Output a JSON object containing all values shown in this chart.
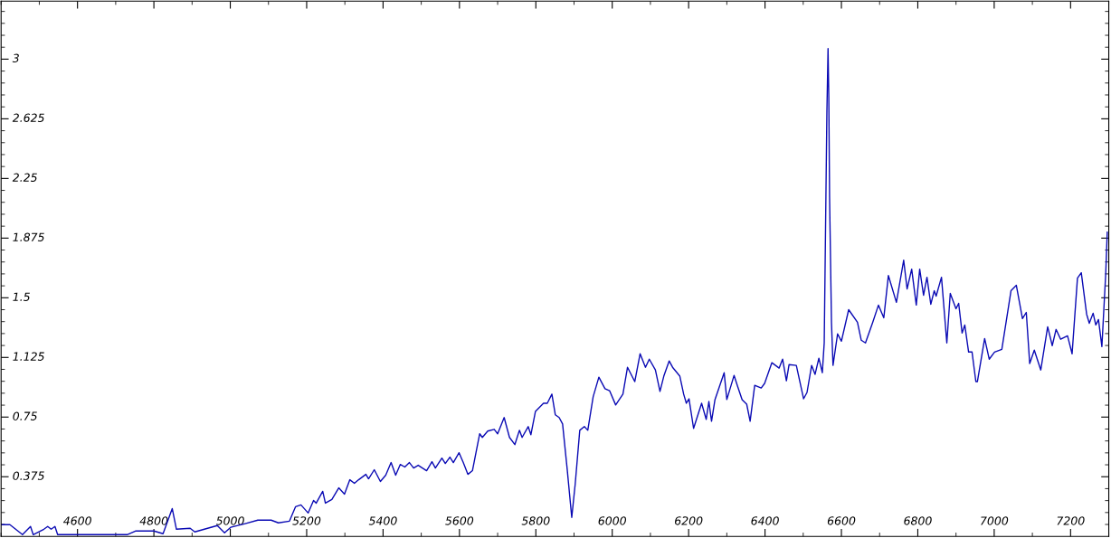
{
  "chart_data": {
    "type": "line",
    "xlim": [
      4400,
      7300
    ],
    "ylim": [
      0,
      3.365
    ],
    "xticks": [
      {
        "value": 4400,
        "label": null
      },
      {
        "value": 4500,
        "label": null
      },
      4600,
      {
        "value": 4700,
        "label": null
      },
      4800,
      {
        "value": 4900,
        "label": null
      },
      5000,
      {
        "value": 5100,
        "label": null
      },
      5200,
      {
        "value": 5300,
        "label": null
      },
      5400,
      {
        "value": 5500,
        "label": null
      },
      5600,
      {
        "value": 5700,
        "label": null
      },
      5800,
      {
        "value": 5900,
        "label": null
      },
      6000,
      {
        "value": 6100,
        "label": null
      },
      6200,
      {
        "value": 6300,
        "label": null
      },
      6400,
      {
        "value": 6500,
        "label": null
      },
      6600,
      {
        "value": 6700,
        "label": null
      },
      6800,
      {
        "value": 6900,
        "label": null
      },
      7000,
      {
        "value": 7100,
        "label": null
      },
      7200,
      {
        "value": 7300,
        "label": null
      }
    ],
    "yticks": [
      {
        "value": 0.075,
        "label": null
      },
      {
        "value": 0.15,
        "label": null
      },
      {
        "value": 0.225,
        "label": null
      },
      {
        "value": 0.3,
        "label": null
      },
      0.375,
      {
        "value": 0.45,
        "label": null
      },
      {
        "value": 0.525,
        "label": null
      },
      {
        "value": 0.6,
        "label": null
      },
      {
        "value": 0.675,
        "label": null
      },
      0.75,
      {
        "value": 0.825,
        "label": null
      },
      {
        "value": 0.9,
        "label": null
      },
      {
        "value": 0.975,
        "label": null
      },
      {
        "value": 1.05,
        "label": null
      },
      1.125,
      {
        "value": 1.2,
        "label": null
      },
      {
        "value": 1.275,
        "label": null
      },
      {
        "value": 1.35,
        "label": null
      },
      {
        "value": 1.425,
        "label": null
      },
      1.5,
      {
        "value": 1.575,
        "label": null
      },
      {
        "value": 1.65,
        "label": null
      },
      {
        "value": 1.725,
        "label": null
      },
      {
        "value": 1.8,
        "label": null
      },
      1.875,
      {
        "value": 1.95,
        "label": null
      },
      {
        "value": 2.025,
        "label": null
      },
      {
        "value": 2.1,
        "label": null
      },
      {
        "value": 2.175,
        "label": null
      },
      2.25,
      {
        "value": 2.325,
        "label": null
      },
      {
        "value": 2.4,
        "label": null
      },
      {
        "value": 2.475,
        "label": null
      },
      {
        "value": 2.55,
        "label": null
      },
      2.625,
      {
        "value": 2.7,
        "label": null
      },
      {
        "value": 2.775,
        "label": null
      },
      {
        "value": 2.85,
        "label": null
      },
      {
        "value": 2.925,
        "label": null
      },
      3,
      {
        "value": 3.075,
        "label": null
      },
      {
        "value": 3.15,
        "label": null
      },
      {
        "value": 3.225,
        "label": null
      },
      {
        "value": 3.3,
        "label": null
      }
    ],
    "grid": false,
    "legend": false,
    "marker": "none",
    "line_style": "solid",
    "series": [
      {
        "color": "#0a0ab4",
        "x": [
          4400,
          4423,
          4456,
          4477,
          4484,
          4512,
          4522,
          4531,
          4541,
          4548,
          4730,
          4753,
          4800,
          4824,
          4848,
          4859,
          4895,
          4907,
          4966,
          4985,
          5001,
          5037,
          5072,
          5107,
          5126,
          5155,
          5171,
          5185,
          5204,
          5218,
          5225,
          5242,
          5249,
          5266,
          5284,
          5299,
          5313,
          5325,
          5336,
          5355,
          5362,
          5377,
          5393,
          5407,
          5421,
          5433,
          5445,
          5457,
          5469,
          5480,
          5492,
          5514,
          5528,
          5537,
          5554,
          5563,
          5575,
          5584,
          5599,
          5610,
          5622,
          5634,
          5653,
          5660,
          5674,
          5691,
          5700,
          5717,
          5731,
          5745,
          5757,
          5764,
          5780,
          5787,
          5799,
          5820,
          5830,
          5842,
          5851,
          5861,
          5870,
          5882,
          5894,
          5903,
          5915,
          5927,
          5936,
          5950,
          5965,
          5981,
          5993,
          6009,
          6028,
          6040,
          6059,
          6073,
          6087,
          6097,
          6113,
          6125,
          6135,
          6149,
          6158,
          6177,
          6187,
          6194,
          6201,
          6213,
          6234,
          6246,
          6253,
          6260,
          6269,
          6293,
          6300,
          6319,
          6328,
          6340,
          6352,
          6361,
          6373,
          6390,
          6399,
          6418,
          6437,
          6446,
          6456,
          6463,
          6482,
          6501,
          6510,
          6522,
          6531,
          6541,
          6550,
          6555,
          6557,
          6562,
          6564,
          6565,
          6567,
          6569,
          6574,
          6578,
          6590,
          6600,
          6619,
          6642,
          6652,
          6663,
          6682,
          6697,
          6711,
          6723,
          6744,
          6763,
          6772,
          6784,
          6796,
          6805,
          6815,
          6824,
          6834,
          6843,
          6848,
          6862,
          6876,
          6885,
          6900,
          6907,
          6916,
          6923,
          6933,
          6942,
          6952,
          6956,
          6975,
          6987,
          7001,
          7020,
          7044,
          7058,
          7074,
          7084,
          7093,
          7105,
          7122,
          7140,
          7152,
          7162,
          7174,
          7192,
          7204,
          7218,
          7228,
          7242,
          7249,
          7259,
          7266,
          7273,
          7282,
          7292,
          7296
        ],
        "values": [
          0.074,
          0.074,
          0.011,
          0.062,
          0.011,
          0.045,
          0.062,
          0.045,
          0.062,
          0.011,
          0.011,
          0.034,
          0.034,
          0.017,
          0.175,
          0.045,
          0.051,
          0.028,
          0.068,
          0.023,
          0.057,
          0.079,
          0.102,
          0.102,
          0.085,
          0.096,
          0.187,
          0.198,
          0.147,
          0.226,
          0.209,
          0.283,
          0.209,
          0.232,
          0.305,
          0.266,
          0.356,
          0.334,
          0.356,
          0.39,
          0.362,
          0.419,
          0.345,
          0.385,
          0.464,
          0.385,
          0.452,
          0.436,
          0.464,
          0.43,
          0.447,
          0.413,
          0.469,
          0.43,
          0.492,
          0.458,
          0.498,
          0.464,
          0.526,
          0.464,
          0.39,
          0.413,
          0.645,
          0.622,
          0.662,
          0.673,
          0.645,
          0.747,
          0.622,
          0.577,
          0.667,
          0.622,
          0.69,
          0.639,
          0.786,
          0.837,
          0.837,
          0.894,
          0.764,
          0.747,
          0.707,
          0.424,
          0.119,
          0.328,
          0.667,
          0.69,
          0.667,
          0.877,
          1.001,
          0.928,
          0.916,
          0.826,
          0.894,
          1.063,
          0.973,
          1.148,
          1.063,
          1.114,
          1.046,
          0.911,
          1.007,
          1.103,
          1.063,
          1.007,
          0.894,
          0.837,
          0.865,
          0.679,
          0.837,
          0.735,
          0.848,
          0.724,
          0.86,
          1.029,
          0.86,
          1.012,
          0.945,
          0.86,
          0.831,
          0.724,
          0.95,
          0.933,
          0.962,
          1.092,
          1.058,
          1.114,
          0.978,
          1.08,
          1.075,
          0.865,
          0.905,
          1.075,
          1.018,
          1.12,
          1.029,
          1.216,
          1.629,
          2.67,
          2.93,
          3.066,
          2.76,
          2.138,
          1.346,
          1.075,
          1.273,
          1.227,
          1.425,
          1.346,
          1.233,
          1.216,
          1.346,
          1.454,
          1.374,
          1.64,
          1.471,
          1.736,
          1.555,
          1.68,
          1.454,
          1.68,
          1.516,
          1.629,
          1.459,
          1.544,
          1.51,
          1.629,
          1.216,
          1.527,
          1.431,
          1.465,
          1.278,
          1.329,
          1.159,
          1.159,
          0.973,
          0.973,
          1.244,
          1.114,
          1.159,
          1.176,
          1.544,
          1.578,
          1.369,
          1.408,
          1.086,
          1.171,
          1.046,
          1.318,
          1.199,
          1.301,
          1.239,
          1.261,
          1.148,
          1.623,
          1.657,
          1.397,
          1.34,
          1.403,
          1.329,
          1.363,
          1.193,
          1.652,
          1.912
        ]
      }
    ]
  }
}
